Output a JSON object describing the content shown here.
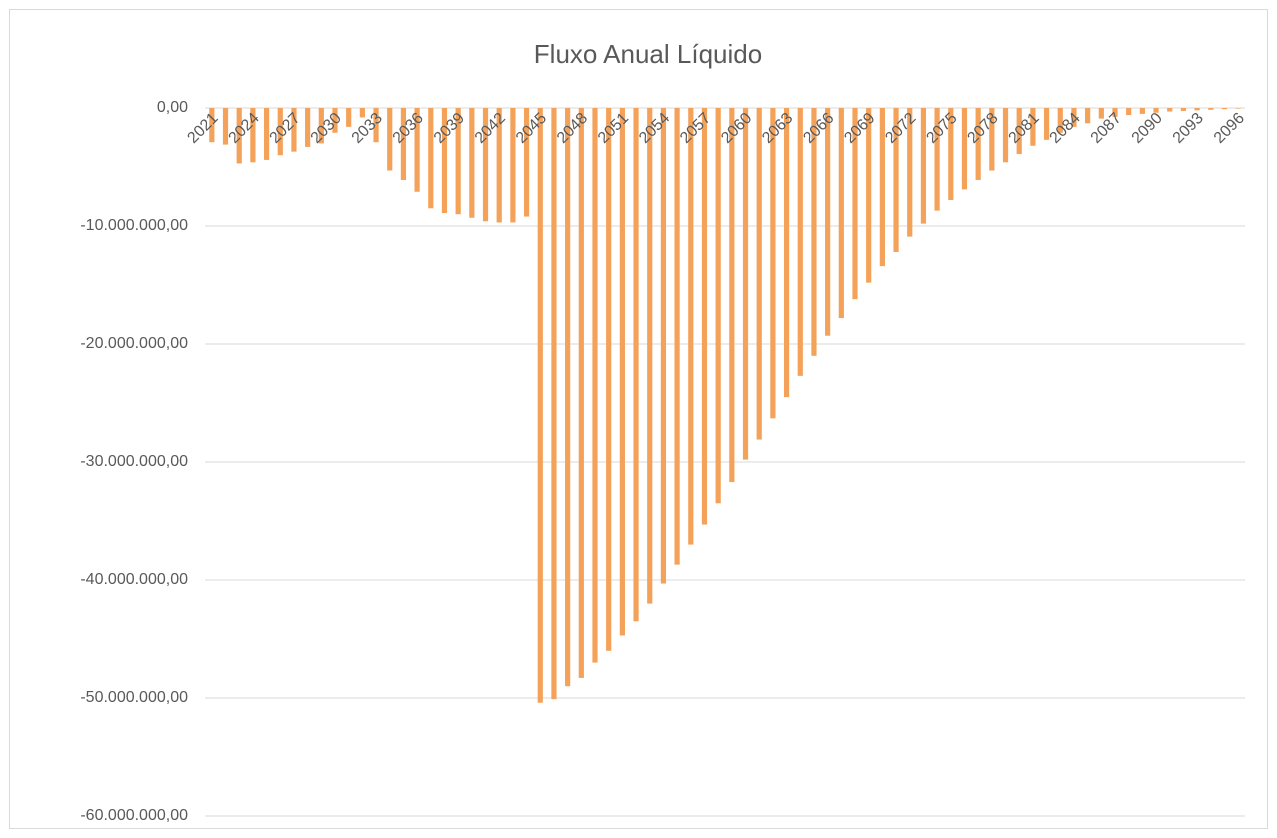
{
  "chart_data": {
    "type": "bar",
    "title": "Fluxo Anual Líquido",
    "categories": [
      "2021",
      null,
      null,
      "2024",
      null,
      null,
      "2027",
      null,
      null,
      "2030",
      null,
      null,
      "2033",
      null,
      null,
      "2036",
      null,
      null,
      "2039",
      null,
      null,
      "2042",
      null,
      null,
      "2045",
      null,
      null,
      "2048",
      null,
      null,
      "2051",
      null,
      null,
      "2054",
      null,
      null,
      "2057",
      null,
      null,
      "2060",
      null,
      null,
      "2063",
      null,
      null,
      "2066",
      null,
      null,
      "2069",
      null,
      null,
      "2072",
      null,
      null,
      "2075",
      null,
      null,
      "2078",
      null,
      null,
      "2081",
      null,
      null,
      "2084",
      null,
      null,
      "2087",
      null,
      null,
      "2090",
      null,
      null,
      "2093",
      null,
      null,
      "2096"
    ],
    "values": [
      -2900000,
      -3100000,
      -4700000,
      -4600000,
      -4400000,
      -4000000,
      -3700000,
      -3300000,
      -3000000,
      -2100000,
      -1600000,
      -800000,
      -2900000,
      -5300000,
      -6100000,
      -7100000,
      -8500000,
      -8900000,
      -9000000,
      -9300000,
      -9600000,
      -9700000,
      -9700000,
      -9200000,
      -50400000,
      -50100000,
      -49000000,
      -48300000,
      -47000000,
      -46000000,
      -44700000,
      -43500000,
      -42000000,
      -40300000,
      -38700000,
      -37000000,
      -35300000,
      -33500000,
      -31700000,
      -29800000,
      -28100000,
      -26300000,
      -24500000,
      -22700000,
      -21000000,
      -19300000,
      -17800000,
      -16200000,
      -14800000,
      -13400000,
      -12200000,
      -10900000,
      -9800000,
      -8700000,
      -7800000,
      -6900000,
      -6100000,
      -5300000,
      -4600000,
      -3900000,
      -3200000,
      -2700000,
      -2100000,
      -1600000,
      -1300000,
      -900000,
      -750000,
      -600000,
      -500000,
      -400000,
      -300000,
      -250000,
      -200000,
      -150000,
      -100000,
      -50000
    ],
    "color": "#f4a259",
    "ylim": [
      -60000000,
      0
    ],
    "yticks": [
      {
        "value": 0,
        "label": "0,00"
      },
      {
        "value": -10000000,
        "label": "-10.000.000,00"
      },
      {
        "value": -20000000,
        "label": "-20.000.000,00"
      },
      {
        "value": -30000000,
        "label": "-30.000.000,00"
      },
      {
        "value": -40000000,
        "label": "-40.000.000,00"
      },
      {
        "value": -50000000,
        "label": "-50.000.000,00"
      },
      {
        "value": -60000000,
        "label": "-60.000.000,00"
      }
    ],
    "grid": true
  }
}
